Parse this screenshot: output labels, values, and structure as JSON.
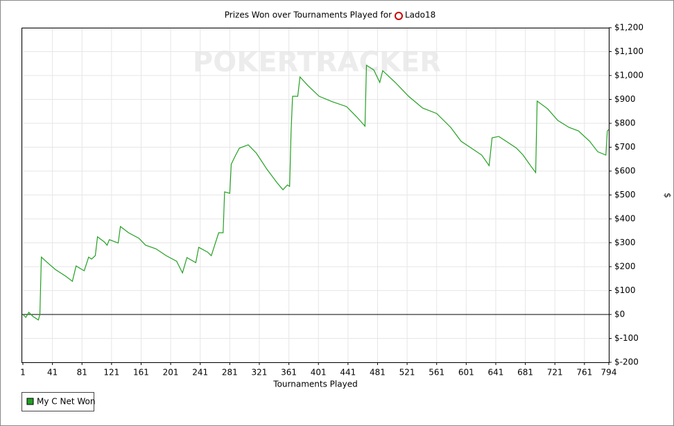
{
  "chart_data": {
    "type": "line",
    "title": "Prizes Won over Tournaments Played for",
    "player": "Lado18",
    "watermark": "POKERTRACKER",
    "x_label": "Tournaments Played",
    "y_label": "$",
    "xlim": [
      1,
      794
    ],
    "xticks": [
      1,
      41,
      81,
      121,
      161,
      201,
      241,
      281,
      321,
      361,
      401,
      441,
      481,
      521,
      561,
      601,
      641,
      681,
      721,
      761,
      794
    ],
    "ylim": [
      -200,
      1200
    ],
    "yticks": [
      {
        "value": -200,
        "label": "$-200"
      },
      {
        "value": -100,
        "label": "$-100"
      },
      {
        "value": 0,
        "label": "$0"
      },
      {
        "value": 100,
        "label": "$100"
      },
      {
        "value": 200,
        "label": "$200"
      },
      {
        "value": 300,
        "label": "$300"
      },
      {
        "value": 400,
        "label": "$400"
      },
      {
        "value": 500,
        "label": "$500"
      },
      {
        "value": 600,
        "label": "$600"
      },
      {
        "value": 700,
        "label": "$700"
      },
      {
        "value": 800,
        "label": "$800"
      },
      {
        "value": 900,
        "label": "$900"
      },
      {
        "value": 1000,
        "label": "$1,000"
      },
      {
        "value": 1100,
        "label": "$1,100"
      },
      {
        "value": 1200,
        "label": "$1,200"
      }
    ],
    "grid": true,
    "x": [
      1,
      5,
      9,
      15,
      22,
      24,
      26,
      36,
      45,
      59,
      68,
      73,
      81,
      84,
      90,
      94,
      99,
      102,
      111,
      115,
      118,
      130,
      133,
      144,
      158,
      167,
      181,
      195,
      209,
      217,
      223,
      235,
      239,
      251,
      256,
      266,
      272,
      274,
      281,
      283,
      289,
      294,
      301,
      306,
      317,
      331,
      345,
      353,
      359,
      362,
      364,
      366,
      373,
      376,
      387,
      402,
      420,
      439,
      453,
      464,
      466,
      476,
      484,
      488,
      505,
      523,
      542,
      561,
      580,
      594,
      608,
      622,
      632,
      636,
      645,
      655,
      669,
      678,
      688,
      695,
      697,
      711,
      725,
      740,
      753,
      768,
      779,
      790,
      792,
      794
    ],
    "series": [
      {
        "name": "My C Net Won",
        "color": "#22a022",
        "values": [
          0,
          -12,
          9,
          -9,
          -23,
          0,
          240,
          212,
          188,
          160,
          139,
          203,
          188,
          183,
          240,
          232,
          246,
          325,
          304,
          290,
          313,
          299,
          368,
          342,
          319,
          290,
          275,
          246,
          223,
          174,
          238,
          217,
          281,
          261,
          246,
          342,
          342,
          513,
          507,
          629,
          667,
          696,
          704,
          710,
          675,
          609,
          551,
          522,
          542,
          536,
          768,
          913,
          913,
          994,
          957,
          913,
          890,
          870,
          826,
          788,
          1043,
          1023,
          971,
          1020,
          971,
          913,
          864,
          841,
          783,
          725,
          696,
          667,
          623,
          739,
          745,
          725,
          696,
          667,
          623,
          594,
          893,
          861,
          812,
          783,
          768,
          725,
          681,
          667,
          768,
          774
        ]
      }
    ]
  }
}
